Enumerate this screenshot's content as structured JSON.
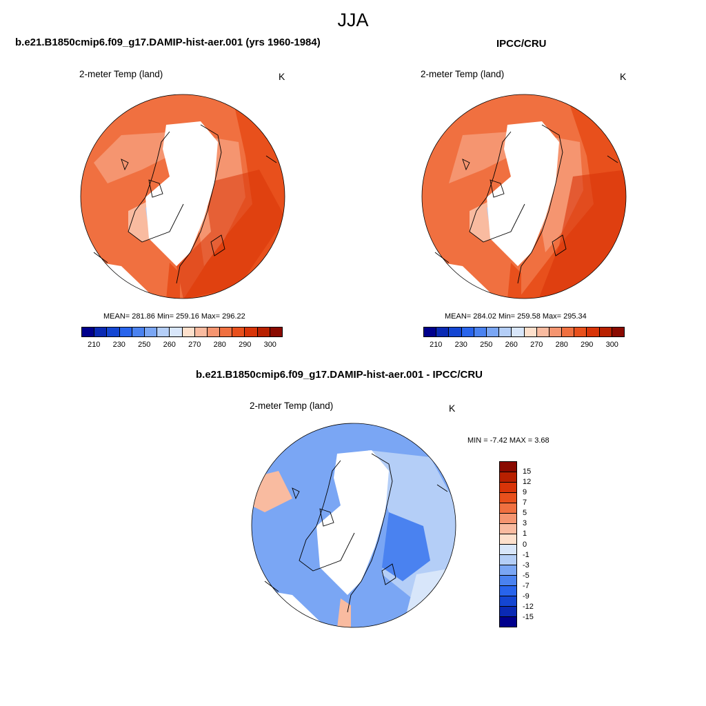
{
  "season": "JJA",
  "panels": [
    {
      "title": "b.e21.B1850cmip6.f09_g17.DAMIP-hist-aer.001 (yrs 1960-1984)",
      "variable": "2-meter Temp (land)",
      "unit": "K",
      "stats": "MEAN= 281.86  Min= 259.16  Max= 296.22",
      "mean": 281.86,
      "min": 259.16,
      "max": 296.22
    },
    {
      "title": "IPCC/CRU",
      "variable": "2-meter Temp (land)",
      "unit": "K",
      "stats": "MEAN= 284.02  Min= 259.58  Max= 295.34",
      "mean": 284.02,
      "min": 259.58,
      "max": 295.34
    },
    {
      "title": "b.e21.B1850cmip6.f09_g17.DAMIP-hist-aer.001 - IPCC/CRU",
      "variable": "2-meter Temp (land)",
      "unit": "K",
      "stats": "MIN =  -7.42 MAX =   3.68",
      "min": -7.42,
      "max": 3.68
    }
  ],
  "colorbar_abs": {
    "colors": [
      "#00008c",
      "#0a2ab4",
      "#1446d2",
      "#2864ec",
      "#4a82f0",
      "#7aa6f4",
      "#b4cef7",
      "#d8e6fa",
      "#fde0cc",
      "#f9bba0",
      "#f59570",
      "#f07040",
      "#e8501c",
      "#d83408",
      "#b82000",
      "#8a0a00"
    ],
    "labels": [
      "210",
      "230",
      "250",
      "260",
      "270",
      "280",
      "290",
      "300"
    ]
  },
  "colorbar_diff": {
    "colors": [
      "#00008c",
      "#0a2ab4",
      "#1446d2",
      "#2864ec",
      "#4a82f0",
      "#7aa6f4",
      "#b4cef7",
      "#d8e6fa",
      "#fde0cc",
      "#f9bba0",
      "#f59570",
      "#f07040",
      "#e8501c",
      "#d83408",
      "#b82000",
      "#8a0a00"
    ],
    "labels": [
      "15",
      "12",
      "9",
      "7",
      "5",
      "3",
      "1",
      "0",
      "-1",
      "-3",
      "-5",
      "-7",
      "-9",
      "-12",
      "-15"
    ]
  },
  "colors": {
    "land_fill_base": "#f07040",
    "diff_fill_base": "#7aa6f4",
    "ice": "#ffffff"
  }
}
